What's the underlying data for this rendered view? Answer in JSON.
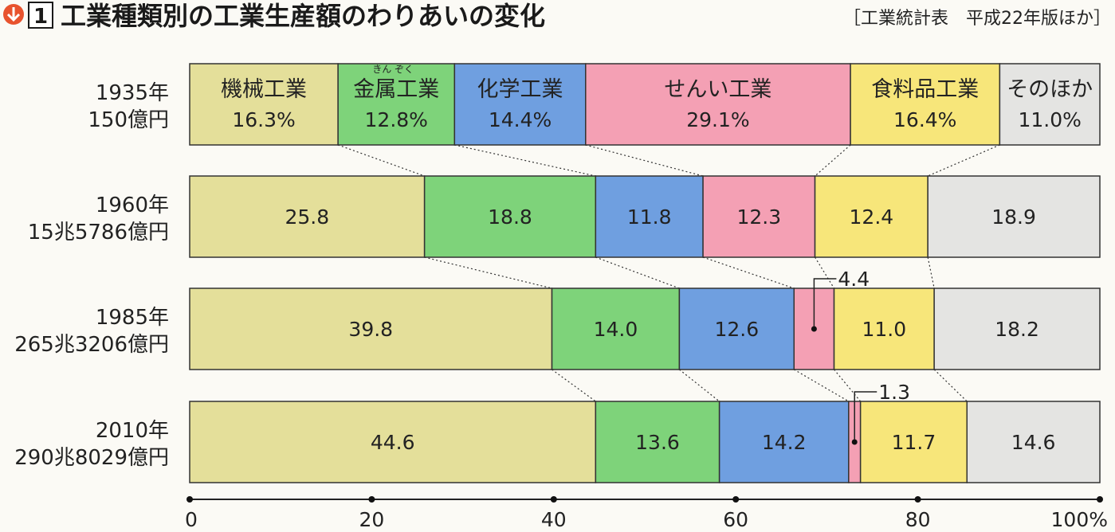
{
  "header": {
    "figure_number": "1",
    "title": "工業種類別の工業生産額のわりあいの変化",
    "source": "［工業統計表　平成22年版ほか］"
  },
  "chart_data": {
    "type": "bar",
    "orientation": "horizontal",
    "stacked": true,
    "categories": [
      {
        "year": "1935年",
        "total": "150億円"
      },
      {
        "year": "1960年",
        "total": "15兆5786億円"
      },
      {
        "year": "1985年",
        "total": "265兆3206億円"
      },
      {
        "year": "2010年",
        "total": "290兆8029億円"
      }
    ],
    "series": [
      {
        "name": "機械工業",
        "ruby": "",
        "color": "#e4df9a",
        "values": [
          16.3,
          25.8,
          39.8,
          44.6
        ],
        "labels": [
          "16.3%",
          "25.8",
          "39.8",
          "44.6"
        ]
      },
      {
        "name": "金属工業",
        "ruby": "きん ぞく",
        "color": "#7ed37a",
        "values": [
          12.8,
          18.8,
          14.0,
          13.6
        ],
        "labels": [
          "12.8%",
          "18.8",
          "14.0",
          "13.6"
        ]
      },
      {
        "name": "化学工業",
        "ruby": "",
        "color": "#6f9fe0",
        "values": [
          14.4,
          11.8,
          12.6,
          14.2
        ],
        "labels": [
          "14.4%",
          "11.8",
          "12.6",
          "14.2"
        ]
      },
      {
        "name": "せんい工業",
        "ruby": "",
        "color": "#f4a0b4",
        "values": [
          29.1,
          12.3,
          4.4,
          1.3
        ],
        "labels": [
          "29.1%",
          "12.3",
          "4.4",
          "1.3"
        ]
      },
      {
        "name": "食料品工業",
        "ruby": "",
        "color": "#f7e67a",
        "values": [
          16.4,
          12.4,
          11.0,
          11.7
        ],
        "labels": [
          "16.4%",
          "12.4",
          "11.0",
          "11.7"
        ]
      },
      {
        "name": "そのほか",
        "ruby": "",
        "color": "#e4e4e2",
        "values": [
          11.0,
          18.9,
          18.2,
          14.6
        ],
        "labels": [
          "11.0%",
          "18.9",
          "18.2",
          "14.6"
        ]
      }
    ],
    "xlim": [
      0,
      100
    ],
    "xticks": [
      0,
      20,
      40,
      60,
      80,
      100
    ],
    "xtick_labels": [
      "0",
      "20",
      "40",
      "60",
      "80",
      "100%"
    ],
    "legend": "inline labels in top bar",
    "connectors": "dotted lines between segment boundaries",
    "callouts": [
      {
        "bar": 2,
        "series": 3,
        "label": "4.4"
      },
      {
        "bar": 3,
        "series": 3,
        "label": "1.3"
      }
    ]
  }
}
